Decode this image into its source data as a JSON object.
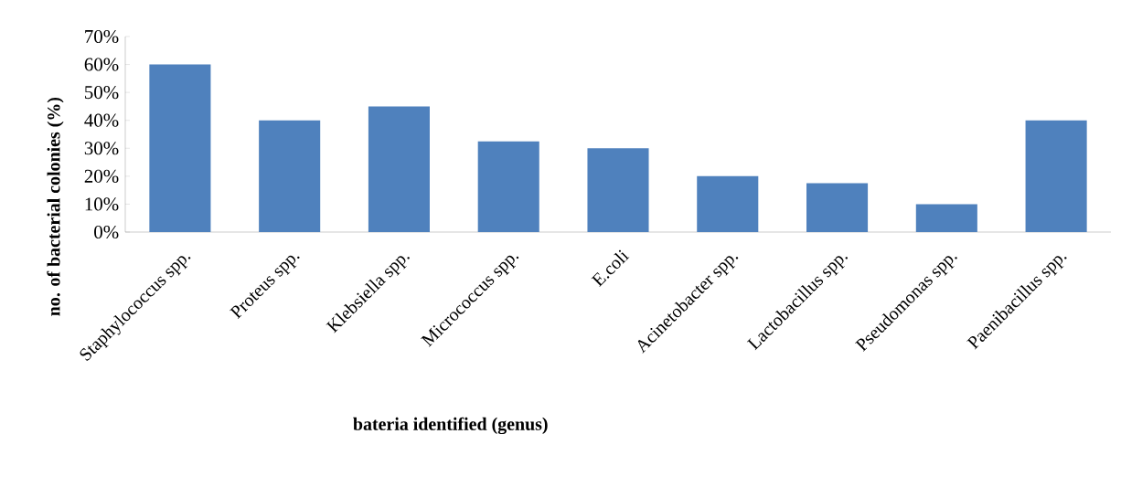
{
  "chart_data": {
    "type": "bar",
    "categories": [
      "Staphylococcus spp.",
      "Proteus spp.",
      "Klebsiella spp.",
      "Micrococcus spp.",
      "E.coli",
      "Acinetobacter spp.",
      "Lactobacillus spp.",
      "Pseudomonas spp.",
      "Paenibacillus spp."
    ],
    "values": [
      60,
      40,
      45,
      32.5,
      30,
      20,
      17.5,
      10,
      40
    ],
    "color": "#4f81bd",
    "xlabel": "bateria identified (genus)",
    "ylabel": "no. of bacterial colonies (%)",
    "ylim": [
      0,
      70
    ],
    "yticks": [
      {
        "value": 0,
        "label": "0%"
      },
      {
        "value": 10,
        "label": "10%"
      },
      {
        "value": 20,
        "label": "20%"
      },
      {
        "value": 30,
        "label": "30%"
      },
      {
        "value": 40,
        "label": "40%"
      },
      {
        "value": 50,
        "label": "50%"
      },
      {
        "value": 60,
        "label": "60%"
      },
      {
        "value": 70,
        "label": "70%"
      }
    ],
    "grid": false
  }
}
